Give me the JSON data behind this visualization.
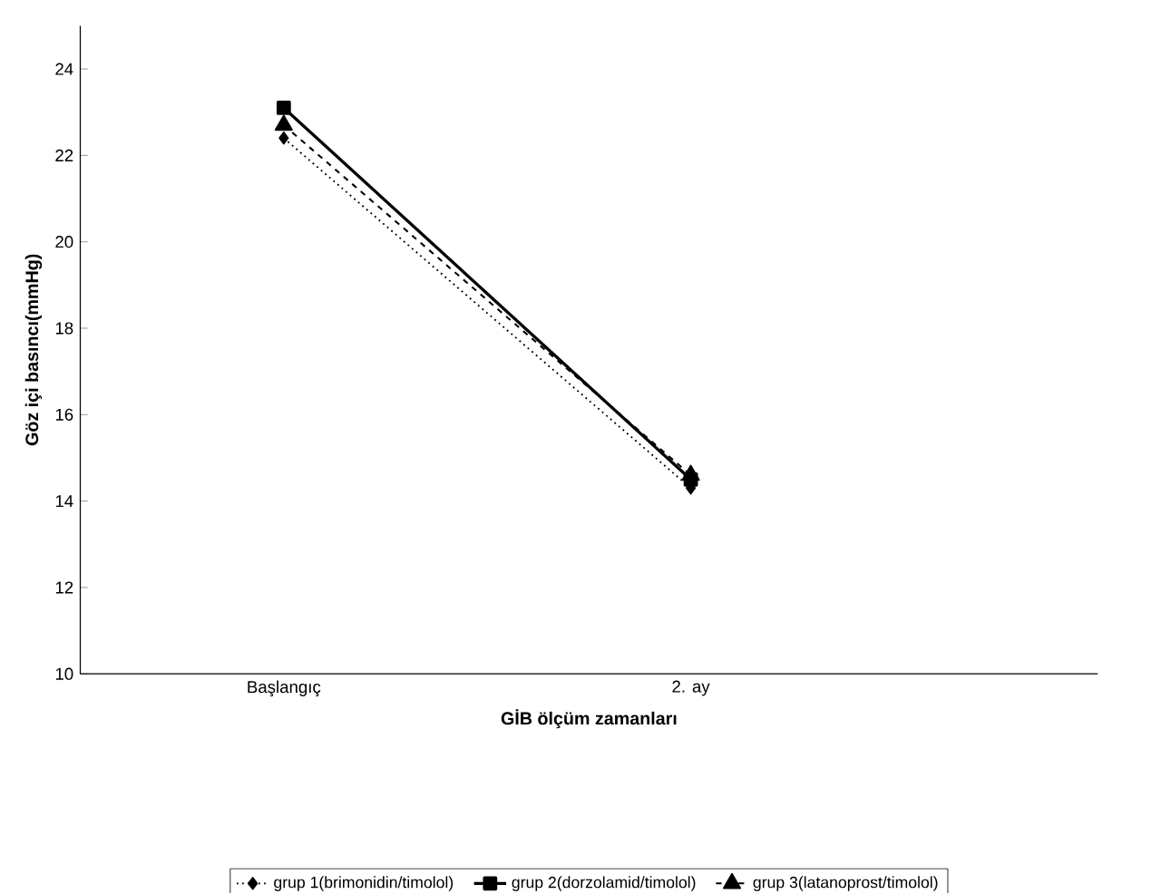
{
  "chart_data": {
    "type": "line",
    "xlabel": "GİB ölçüm zamanları",
    "ylabel": "Göz içi basıncı(mmHg)",
    "categories": [
      "Başlangıç",
      "2. ay"
    ],
    "ylim": [
      10,
      25
    ],
    "yticks": [
      10,
      12,
      14,
      16,
      18,
      20,
      22,
      24
    ],
    "grid": false,
    "legend": "bottom",
    "series": [
      {
        "name": "grup 1(brimonidin/timolol)",
        "color": "#000000",
        "values": [
          22.4,
          14.3
        ],
        "marker": "diamond",
        "line_style": "dotted"
      },
      {
        "name": "grup 2(dorzolamid/timolol)",
        "color": "#000000",
        "values": [
          23.1,
          14.5
        ],
        "marker": "square",
        "line_style": "solid"
      },
      {
        "name": "grup 3(latanoprost/timolol)",
        "color": "#000000",
        "values": [
          22.7,
          14.6
        ],
        "marker": "triangle",
        "line_style": "dashed"
      }
    ]
  }
}
